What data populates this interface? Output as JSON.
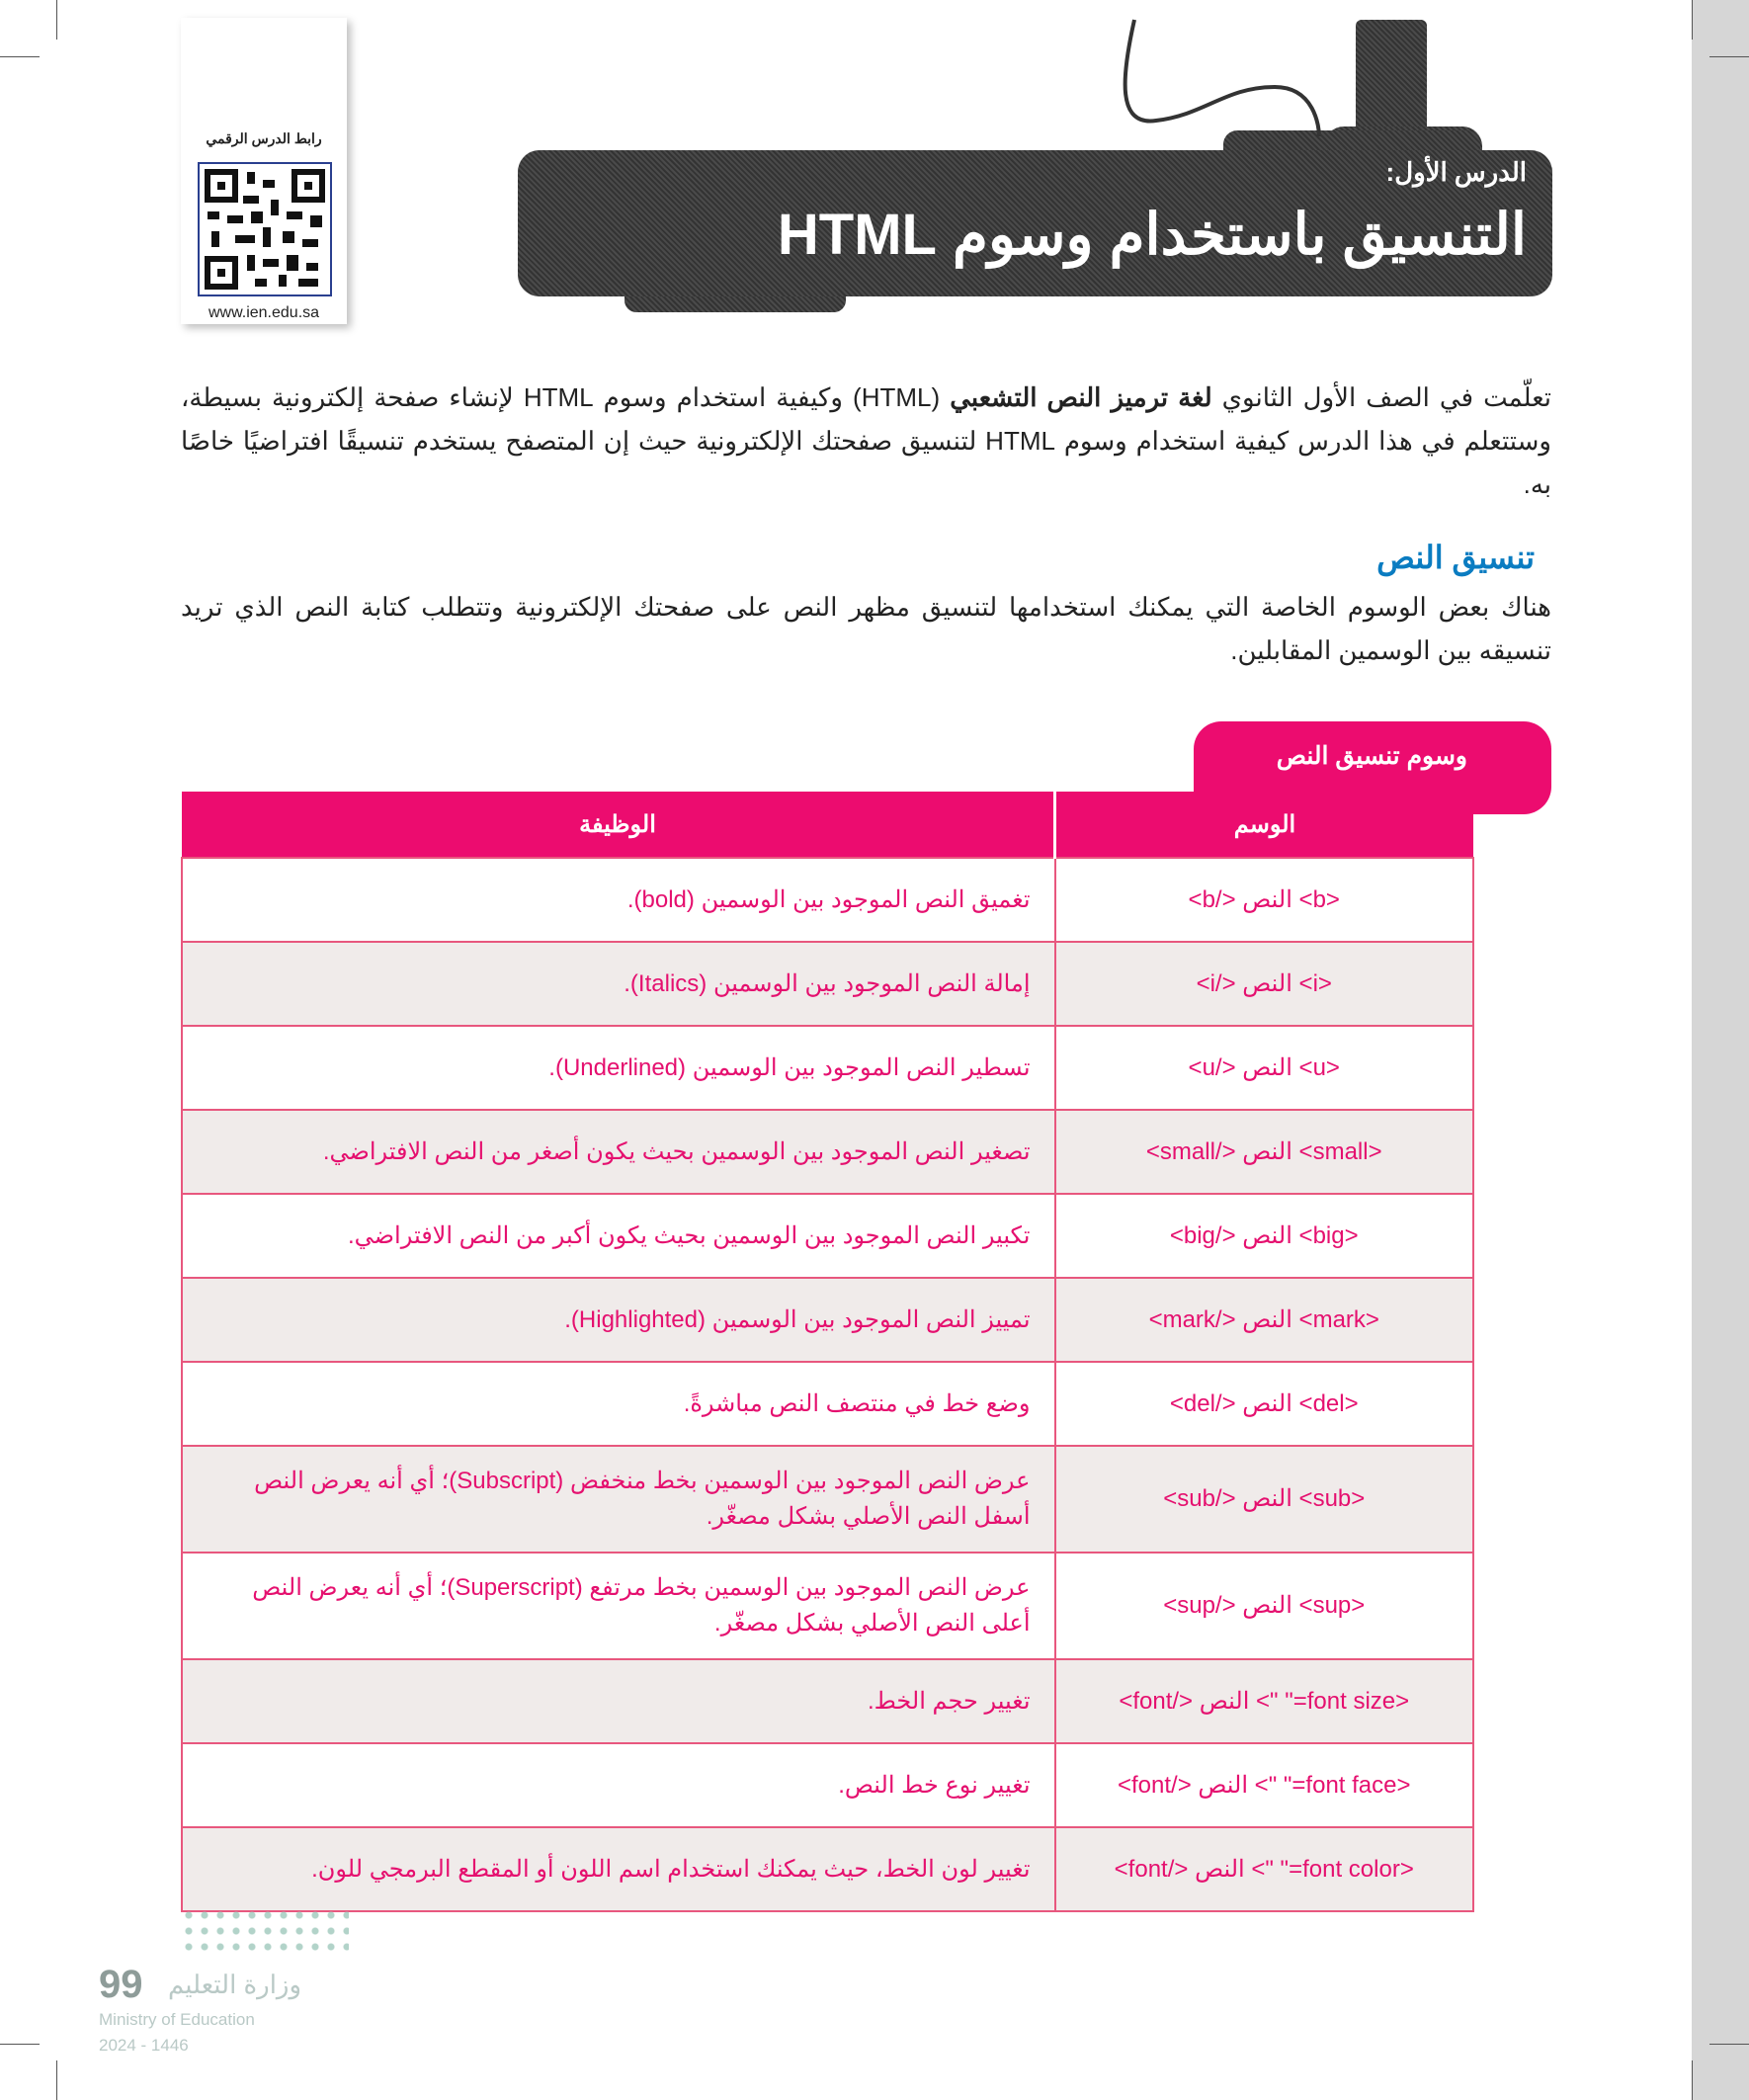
{
  "qr": {
    "label": "رابط الدرس الرقمي",
    "url": "www.ien.edu.sa"
  },
  "banner": {
    "lesson": "الدرس الأول:",
    "title": "التنسيق باستخدام وسوم HTML"
  },
  "intro": {
    "pre": "تعلّمت في الصف الأول الثانوي ",
    "bold": "لغة ترميز النص التشعبي",
    "post": " (HTML) وكيفية استخدام وسوم HTML لإنشاء صفحة إلكترونية بسيطة، وستتعلم في هذا الدرس كيفية استخدام وسوم HTML لتنسيق صفحتك الإلكترونية حيث إن المتصفح يستخدم تنسيقًا افتراضيًا خاصًا به."
  },
  "section": {
    "heading": "تنسيق النص",
    "text": "هناك بعض الوسوم الخاصة التي يمكنك استخدامها لتنسيق مظهر النص على صفحتك الإلكترونية وتتطلب كتابة النص الذي تريد تنسيقه بين الوسمين المقابلين."
  },
  "table": {
    "caption": "وسوم تنسيق النص",
    "headers": [
      "الوسم",
      "الوظيفة"
    ],
    "rows": [
      {
        "tag": "<b/> النص <b>",
        "fn": "تغميق النص الموجود بين الوسمين (bold)."
      },
      {
        "tag": "<i/> النص <i>",
        "fn": "إمالة النص الموجود بين الوسمين (Italics)."
      },
      {
        "tag": "<u/> النص <u>",
        "fn": "تسطير النص الموجود بين الوسمين (Underlined)."
      },
      {
        "tag": "<small/> النص <small>",
        "fn": "تصغير النص الموجود بين الوسمين بحيث يكون أصغر من النص الافتراضي."
      },
      {
        "tag": "<big/> النص <big>",
        "fn": "تكبير النص الموجود بين الوسمين بحيث يكون أكبر من النص الافتراضي."
      },
      {
        "tag": "<mark/> النص <mark>",
        "fn": "تمييز النص الموجود بين الوسمين (Highlighted)."
      },
      {
        "tag": "<del/> النص <del>",
        "fn": "وضع خط في منتصف النص مباشرةً."
      },
      {
        "tag": "<sub/> النص <sub>",
        "fn": "عرض النص الموجود بين الوسمين بخط منخفض (Subscript)؛ أي أنه يعرض النص أسفل النص الأصلي بشكل مصغّر."
      },
      {
        "tag": "<sup/> النص <sup>",
        "fn": "عرض النص الموجود بين الوسمين بخط مرتفع (Superscript)؛ أي أنه يعرض النص أعلى النص الأصلي بشكل مصغّر."
      },
      {
        "tag": "<font/> النص <\" \"=font size>",
        "fn": "تغيير حجم الخط."
      },
      {
        "tag": "<font/> النص <\" \"=font face>",
        "fn": "تغيير نوع خط النص."
      },
      {
        "tag": "<font/> النص <\" \"=font color>",
        "fn": "تغيير لون الخط، حيث يمكنك استخدام اسم اللون أو المقطع البرمجي للون."
      }
    ]
  },
  "footer": {
    "page": "99",
    "ministry_ar": "وزارة التعليم",
    "ministry_en": "Ministry of Education",
    "year": "2024 - 1446"
  },
  "colors": {
    "accent": "#ec0c6f",
    "heading": "#0a7cc1",
    "row_alt": "#f0ebea"
  }
}
